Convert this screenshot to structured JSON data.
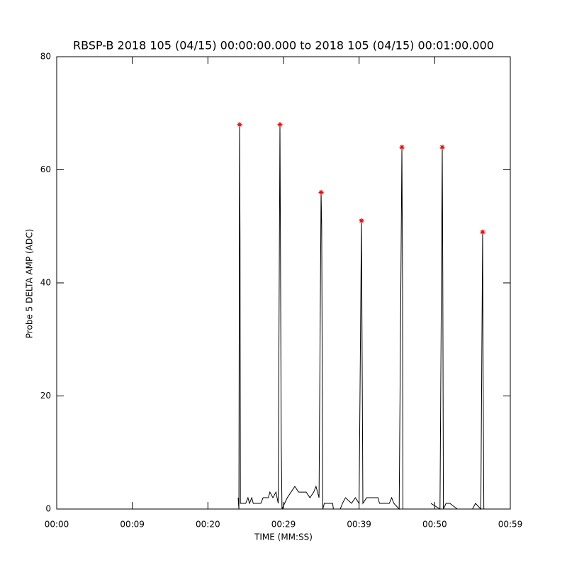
{
  "chart_data": {
    "type": "line",
    "title": "RBSP-B 2018 105 (04/15) 00:00:00.000 to 2018 105 (04/15) 00:01:00.000",
    "xlabel": "TIME (MM:SS)",
    "ylabel": "Probe 5 DELTA AMP (ADC)",
    "xlim": [
      0,
      60
    ],
    "ylim": [
      0,
      80
    ],
    "xticks": [
      {
        "value": 0,
        "label": "00:00"
      },
      {
        "value": 10,
        "label": "00:09"
      },
      {
        "value": 20,
        "label": "00:20"
      },
      {
        "value": 30,
        "label": "00:29"
      },
      {
        "value": 40,
        "label": "00:39"
      },
      {
        "value": 50,
        "label": "00:50"
      },
      {
        "value": 60,
        "label": "00:59"
      }
    ],
    "yticks": [
      0,
      20,
      40,
      60,
      80
    ],
    "series": [
      {
        "color": "#000000",
        "marker": "none",
        "x": [
          24.0,
          24.1,
          24.19,
          24.25,
          24.3,
          25.0,
          25.3,
          25.5,
          25.8,
          26.0,
          27.0,
          27.3,
          28.0,
          28.2,
          28.6,
          29.0,
          29.3,
          29.53,
          29.6,
          29.7,
          29.8,
          30.5,
          31.0,
          31.5,
          32.0,
          33.0,
          33.5,
          34.0,
          34.3,
          34.7,
          34.97,
          35.05,
          35.2,
          35.4,
          36.5,
          36.6,
          37.5,
          37.8,
          38.2,
          39.0,
          39.5,
          40.0,
          40.31,
          40.4,
          40.5,
          41.0,
          42.5,
          42.7,
          44.0,
          44.3,
          44.6,
          45.3,
          45.66,
          45.75,
          45.8,
          48.0,
          49.5,
          50.7,
          51.0,
          51.07,
          51.15,
          51.5,
          52.0,
          53.0,
          54.0,
          55.0,
          55.4,
          56.1,
          56.34,
          56.4,
          56.5
        ],
        "values": [
          2,
          0,
          68,
          48,
          1,
          1,
          2,
          1,
          2,
          1,
          1,
          2,
          2,
          3,
          2,
          3,
          1,
          68,
          46,
          12,
          0,
          2,
          3,
          4,
          3,
          3,
          2,
          3,
          4,
          2,
          56,
          50,
          0,
          1,
          1,
          0,
          0,
          1,
          2,
          1,
          2,
          1,
          51,
          27,
          1,
          2,
          2,
          1,
          1,
          2,
          1,
          0,
          64,
          39,
          0,
          null,
          1,
          0,
          64,
          41,
          0,
          1,
          1,
          0,
          null,
          0,
          1,
          0,
          49,
          25,
          0
        ]
      },
      {
        "color": "#ff0000",
        "marker": "asterisk",
        "x": [
          24.19,
          29.53,
          34.97,
          40.31,
          45.66,
          51.0,
          56.34
        ],
        "values": [
          68,
          68,
          56,
          51,
          64,
          64,
          49
        ]
      }
    ]
  }
}
